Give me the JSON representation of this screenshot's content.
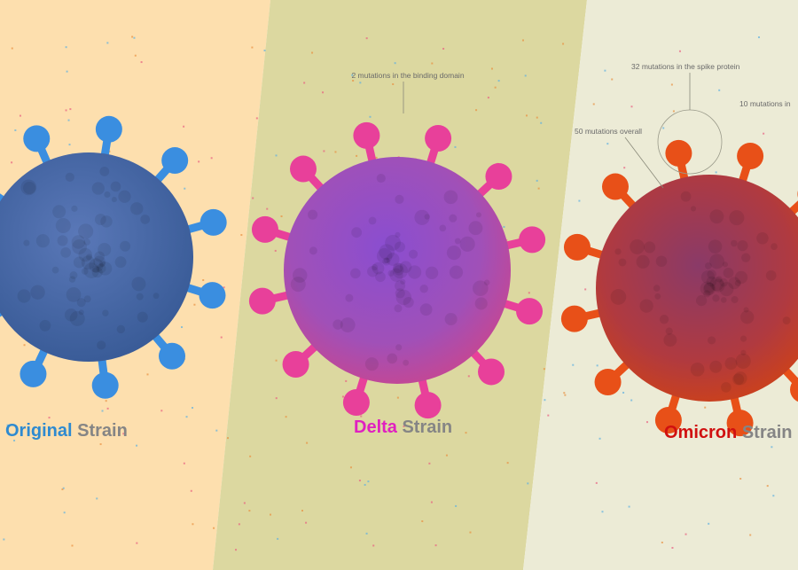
{
  "panels": [
    {
      "name": "Original",
      "suffix": "Strain",
      "annotations": []
    },
    {
      "name": "Delta",
      "suffix": "Strain",
      "annotations": [
        "2 mutations in the binding domain"
      ]
    },
    {
      "name": "Omicron",
      "suffix": "Strain",
      "annotations": [
        "32 mutations in the spike protein",
        "10 mutations in",
        "50 mutations overall"
      ]
    }
  ]
}
